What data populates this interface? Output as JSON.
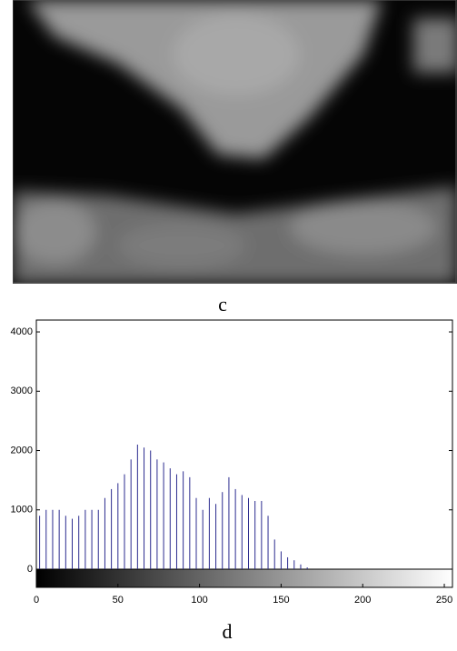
{
  "image_caption": "c",
  "chart_data": {
    "type": "stem",
    "caption": "d",
    "x": [
      2,
      6,
      10,
      14,
      18,
      22,
      26,
      30,
      34,
      38,
      42,
      46,
      50,
      54,
      58,
      62,
      66,
      70,
      74,
      78,
      82,
      86,
      90,
      94,
      98,
      102,
      106,
      110,
      114,
      118,
      122,
      126,
      130,
      134,
      138,
      142,
      146,
      150,
      154,
      158,
      162,
      166
    ],
    "values": [
      900,
      1000,
      1000,
      1000,
      900,
      850,
      900,
      1000,
      1000,
      1000,
      1200,
      1350,
      1450,
      1600,
      1850,
      2100,
      2050,
      2000,
      1850,
      1800,
      1700,
      1600,
      1650,
      1550,
      1200,
      1000,
      1200,
      1100,
      1300,
      1550,
      1350,
      1250,
      1200,
      1150,
      1150,
      900,
      500,
      300,
      200,
      150,
      80,
      30
    ],
    "color": "#2b2b8f",
    "xlim": [
      0,
      255
    ],
    "xticks": [
      0,
      50,
      100,
      150,
      200,
      250
    ],
    "ylim": [
      0,
      4200
    ],
    "yticks": [
      0,
      1000,
      2000,
      3000,
      4000
    ]
  }
}
